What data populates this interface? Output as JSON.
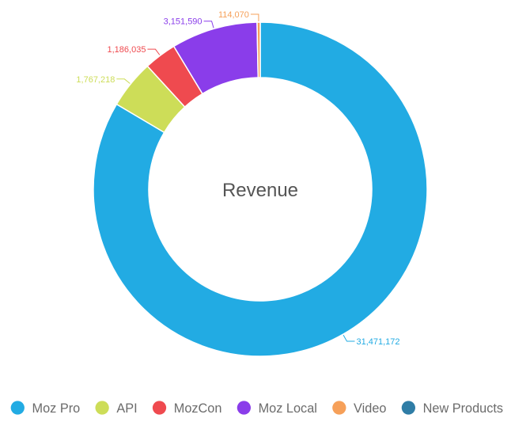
{
  "chart_data": {
    "type": "pie",
    "title": "Revenue",
    "categories": [
      "Moz Pro",
      "API",
      "MozCon",
      "Moz Local",
      "Video",
      "New Products"
    ],
    "values": [
      31471172,
      1767218,
      1186035,
      3151590,
      114070,
      0
    ],
    "value_labels": [
      "31,471,172",
      "1,767,218",
      "1,186,035",
      "3,151,590",
      "114,070",
      ""
    ],
    "colors": [
      "#22abe3",
      "#cddd58",
      "#ef4a4f",
      "#8a3dea",
      "#f6a059",
      "#2f7da6"
    ],
    "legend_position": "bottom",
    "donut": true
  }
}
